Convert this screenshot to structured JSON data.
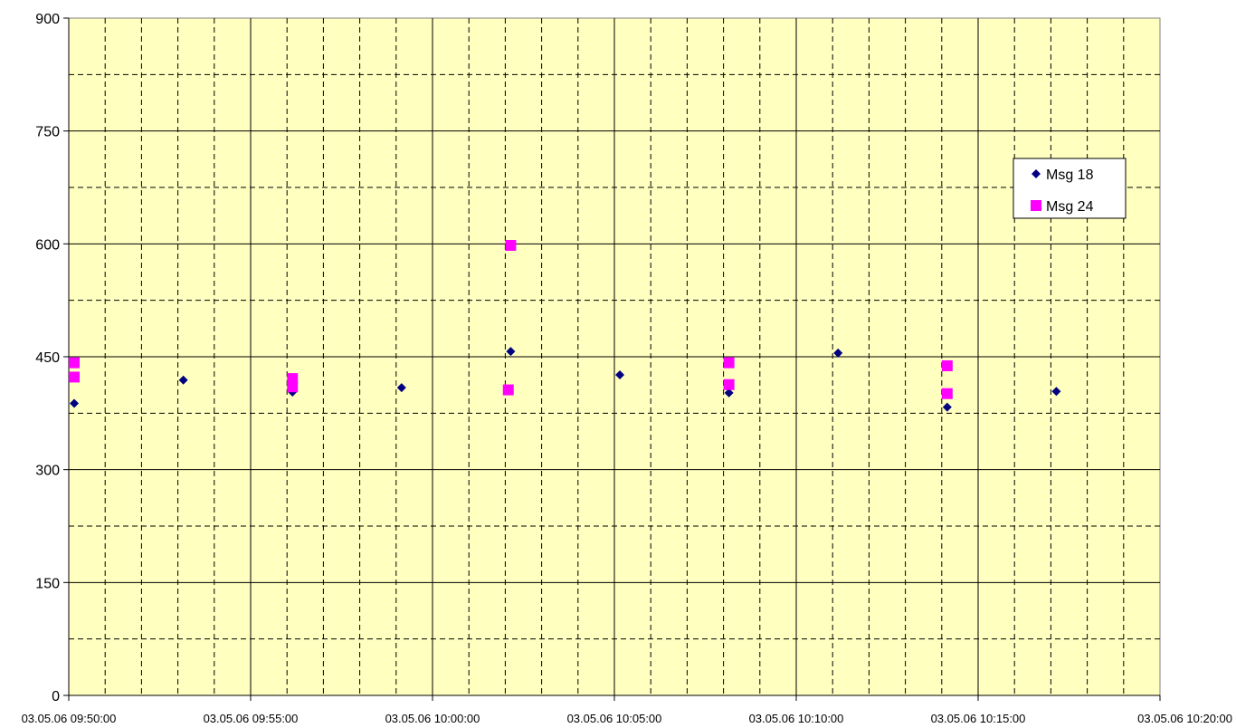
{
  "chart_data": {
    "type": "scatter",
    "title": "",
    "xlabel": "",
    "ylabel": "",
    "ylim": [
      0,
      900
    ],
    "xlim": [
      "03.05.06 09:50:00",
      "03.05.06 10:20:00"
    ],
    "y_major_ticks": [
      0,
      150,
      300,
      450,
      600,
      750,
      900
    ],
    "y_minor_step": 75,
    "x_major_ticks": [
      "03.05.06 09:50:00",
      "03.05.06 09:55:00",
      "03.05.06 10:00:00",
      "03.05.06 10:05:00",
      "03.05.06 10:10:00",
      "03.05.06 10:15:00",
      "03.05.06 10:20:00"
    ],
    "x_minor_step_minutes": 1,
    "grid": true,
    "background": "#FFFFC0",
    "legend_position": "right",
    "series": [
      {
        "name": "Msg 18",
        "marker": "diamond",
        "color": "#000080",
        "points": [
          {
            "x": "03.05.06 09:50:09",
            "y": 388
          },
          {
            "x": "03.05.06 09:53:09",
            "y": 419
          },
          {
            "x": "03.05.06 09:56:09",
            "y": 403
          },
          {
            "x": "03.05.06 09:59:09",
            "y": 409
          },
          {
            "x": "03.05.06 10:02:09",
            "y": 457
          },
          {
            "x": "03.05.06 10:05:09",
            "y": 426
          },
          {
            "x": "03.05.06 10:08:09",
            "y": 402
          },
          {
            "x": "03.05.06 10:11:09",
            "y": 455
          },
          {
            "x": "03.05.06 10:14:09",
            "y": 383
          },
          {
            "x": "03.05.06 10:17:09",
            "y": 404
          }
        ]
      },
      {
        "name": "Msg 24",
        "marker": "square",
        "color": "#FF00FF",
        "points": [
          {
            "x": "03.05.06 09:50:09",
            "y": 442
          },
          {
            "x": "03.05.06 09:50:09",
            "y": 423
          },
          {
            "x": "03.05.06 09:56:09",
            "y": 421
          },
          {
            "x": "03.05.06 09:56:09",
            "y": 410
          },
          {
            "x": "03.05.06 10:02:05",
            "y": 406
          },
          {
            "x": "03.05.06 10:02:09",
            "y": 598
          },
          {
            "x": "03.05.06 10:08:09",
            "y": 442
          },
          {
            "x": "03.05.06 10:08:09",
            "y": 413
          },
          {
            "x": "03.05.06 10:14:09",
            "y": 438
          },
          {
            "x": "03.05.06 10:14:09",
            "y": 401
          }
        ]
      }
    ]
  }
}
